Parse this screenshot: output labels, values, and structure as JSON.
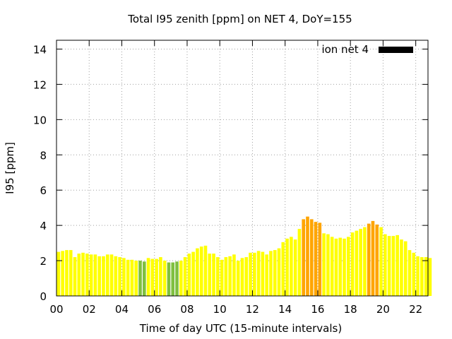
{
  "chart_data": {
    "type": "bar",
    "title": "Total I95 zenith [ppm] on NET 4, DoY=155",
    "xlabel": "Time of day UTC (15-minute intervals)",
    "ylabel": "I95 [ppm]",
    "xlim": [
      0,
      22.75
    ],
    "ylim": [
      0,
      14.5
    ],
    "xticks": [
      "00",
      "02",
      "04",
      "06",
      "08",
      "10",
      "12",
      "14",
      "16",
      "18",
      "20",
      "22"
    ],
    "xtick_values": [
      0,
      2,
      4,
      6,
      8,
      10,
      12,
      14,
      16,
      18,
      20,
      22
    ],
    "yticks": [
      "0",
      "2",
      "4",
      "6",
      "8",
      "10",
      "12",
      "14"
    ],
    "ytick_values": [
      0,
      2,
      4,
      6,
      8,
      10,
      12,
      14
    ],
    "grid": true,
    "legend": {
      "label": "ion net 4",
      "color": "#000000",
      "placement": "top-right"
    },
    "bar_interval_hours": 0.25,
    "x_start": 0,
    "values": [
      2.5,
      2.55,
      2.6,
      2.6,
      2.2,
      2.4,
      2.45,
      2.4,
      2.35,
      2.35,
      2.25,
      2.25,
      2.35,
      2.35,
      2.25,
      2.2,
      2.15,
      2.05,
      2.05,
      2.0,
      2.0,
      1.95,
      2.15,
      2.1,
      2.1,
      2.2,
      2.0,
      1.9,
      1.9,
      1.95,
      2.0,
      2.2,
      2.4,
      2.5,
      2.7,
      2.8,
      2.85,
      2.4,
      2.4,
      2.2,
      2.05,
      2.2,
      2.25,
      2.35,
      2.0,
      2.15,
      2.2,
      2.45,
      2.45,
      2.55,
      2.5,
      2.35,
      2.55,
      2.6,
      2.7,
      3.05,
      3.25,
      3.35,
      3.2,
      3.8,
      4.35,
      4.5,
      4.35,
      4.2,
      4.15,
      3.55,
      3.5,
      3.35,
      3.25,
      3.3,
      3.25,
      3.35,
      3.6,
      3.7,
      3.8,
      3.9,
      4.1,
      4.25,
      4.05,
      3.9,
      3.5,
      3.4,
      3.4,
      3.45,
      3.2,
      3.1,
      2.6,
      2.45,
      2.25,
      2.2,
      2.2,
      2.15
    ],
    "colors": [
      "#ffff00",
      "#ffff00",
      "#ffff00",
      "#ffff00",
      "#ffff00",
      "#ffff00",
      "#ffff00",
      "#ffff00",
      "#ffff00",
      "#ffff00",
      "#ffff00",
      "#ffff00",
      "#ffff00",
      "#ffff00",
      "#ffff00",
      "#ffff00",
      "#ffff00",
      "#ffff00",
      "#ffff00",
      "#ffff00",
      "#7fbf3f",
      "#7fbf3f",
      "#ffff00",
      "#ffff00",
      "#ffff00",
      "#ffff00",
      "#ffff00",
      "#7fbf3f",
      "#7fbf3f",
      "#7fbf3f",
      "#ffff00",
      "#ffff00",
      "#ffff00",
      "#ffff00",
      "#ffff00",
      "#ffff00",
      "#ffff00",
      "#ffff00",
      "#ffff00",
      "#ffff00",
      "#ffff00",
      "#ffff00",
      "#ffff00",
      "#ffff00",
      "#ffff00",
      "#ffff00",
      "#ffff00",
      "#ffff00",
      "#ffff00",
      "#ffff00",
      "#ffff00",
      "#ffff00",
      "#ffff00",
      "#ffff00",
      "#ffff00",
      "#ffff00",
      "#ffff00",
      "#ffff00",
      "#ffff00",
      "#ffff00",
      "#ffa500",
      "#ffa500",
      "#ffa500",
      "#ffa500",
      "#ffa500",
      "#ffff00",
      "#ffff00",
      "#ffff00",
      "#ffff00",
      "#ffff00",
      "#ffff00",
      "#ffff00",
      "#ffff00",
      "#ffff00",
      "#ffff00",
      "#ffff00",
      "#ffa500",
      "#ffa500",
      "#ffa500",
      "#ffff00",
      "#ffff00",
      "#ffff00",
      "#ffff00",
      "#ffff00",
      "#ffff00",
      "#ffff00",
      "#ffff00",
      "#ffff00",
      "#ffff00",
      "#ffff00",
      "#ffff00",
      "#ffff00"
    ]
  }
}
